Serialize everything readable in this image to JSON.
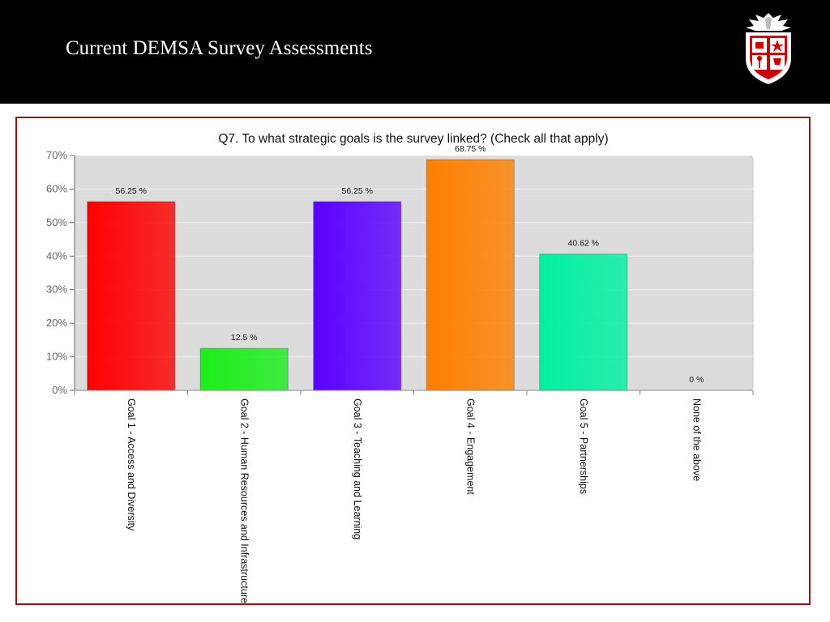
{
  "slide": {
    "title": "Current DEMSA Survey Assessments"
  },
  "logo": {
    "icon": "university-shield-logo"
  },
  "colors": {
    "header_bg": "#000000",
    "frame_border": "#8b1a1a",
    "plot_bg": "#dcdcdc"
  },
  "chart_data": {
    "type": "bar",
    "title": "Q7. To what strategic goals is the survey linked? (Check all that apply)",
    "xlabel": "",
    "ylabel": "",
    "ylim": [
      0,
      70
    ],
    "yticks": [
      "0%",
      "10%",
      "20%",
      "30%",
      "40%",
      "50%",
      "60%",
      "70%"
    ],
    "categories": [
      "Goal 1 - Access and Diversity",
      "Goal 2 - Human Resources and Infrastructure",
      "Goal 3 - Teaching and Learning",
      "Goal 4 - Engagement",
      "Goal 5 - Partnerships",
      "None of the above"
    ],
    "values": [
      56.25,
      12.5,
      56.25,
      68.75,
      40.62,
      0
    ],
    "data_labels": [
      "56.25 %",
      "12.5 %",
      "56.25 %",
      "68.75 %",
      "40.62 %",
      "0 %"
    ],
    "bar_colors": [
      "#ff0000",
      "#1aee1a",
      "#5a00ff",
      "#ff7f00",
      "#00f0a0",
      "#cccccc"
    ],
    "grid": true,
    "legend": "none"
  }
}
